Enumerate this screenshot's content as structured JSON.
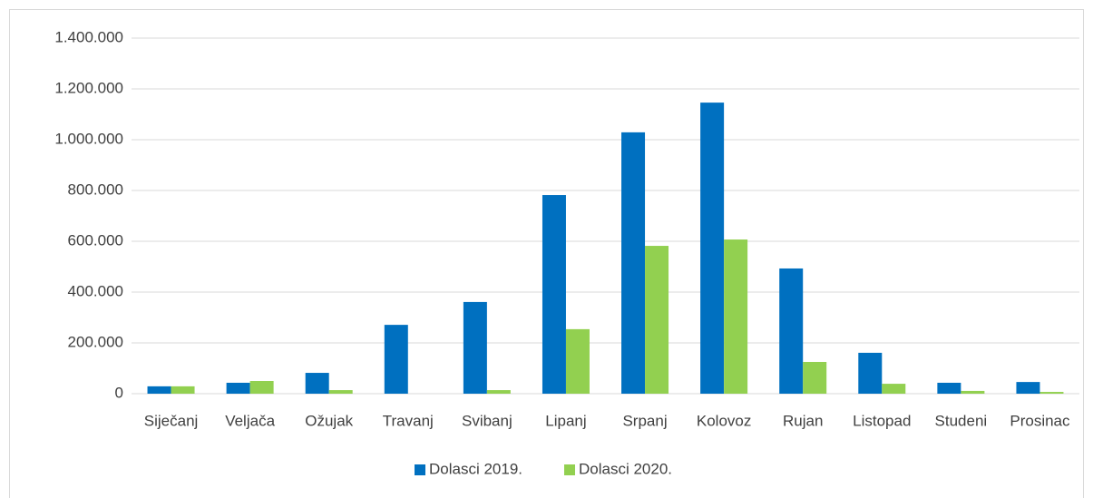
{
  "chart_data": {
    "type": "bar",
    "categories": [
      "Siječanj",
      "Veljača",
      "Ožujak",
      "Travanj",
      "Svibanj",
      "Lipanj",
      "Srpanj",
      "Kolovoz",
      "Rujan",
      "Listopad",
      "Studeni",
      "Prosinac"
    ],
    "series": [
      {
        "name": "Dolasci 2019.",
        "color": "#0070c0",
        "values": [
          29000,
          43000,
          82000,
          271000,
          361000,
          782000,
          1029000,
          1146000,
          493000,
          161000,
          43000,
          46000
        ]
      },
      {
        "name": "Dolasci 2020.",
        "color": "#92d050",
        "values": [
          29000,
          50000,
          14000,
          0,
          14000,
          254000,
          582000,
          607000,
          125000,
          39000,
          11000,
          7000
        ]
      }
    ],
    "ylim": [
      0,
      1400000
    ],
    "yticks": [
      0,
      {
        "value": 200000,
        "label": "200.000"
      },
      {
        "value": 400000,
        "label": "400.000"
      },
      {
        "value": 600000,
        "label": "600.000"
      },
      {
        "value": 800000,
        "label": "800.000"
      },
      {
        "value": 1000000,
        "label": "1.000.000"
      },
      {
        "value": 1200000,
        "label": "1.200.000"
      },
      {
        "value": 1400000,
        "label": "1.400.000"
      }
    ],
    "grid": true,
    "legend": "bottom"
  }
}
